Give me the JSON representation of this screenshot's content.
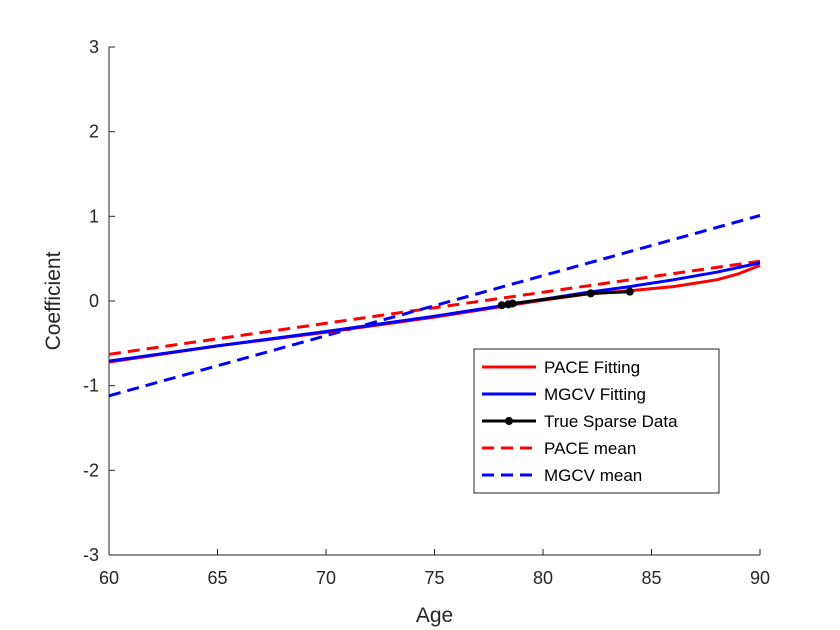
{
  "chart_data": {
    "type": "line",
    "title": "",
    "xlabel": "Age",
    "ylabel": "Coefficient",
    "xlim": [
      60,
      90
    ],
    "ylim": [
      -3,
      3
    ],
    "xticks": [
      60,
      65,
      70,
      75,
      80,
      85,
      90
    ],
    "yticks": [
      -3,
      -2,
      -1,
      0,
      1,
      2,
      3
    ],
    "grid": false,
    "legend_position": "lower-right",
    "series": [
      {
        "name": "PACE Fitting",
        "color": "#ff0000",
        "style": "solid",
        "x": [
          60,
          65,
          70,
          75,
          78,
          80,
          82,
          84,
          86,
          88,
          89,
          90
        ],
        "y": [
          -0.72,
          -0.53,
          -0.37,
          -0.19,
          -0.07,
          0.01,
          0.08,
          0.12,
          0.17,
          0.25,
          0.32,
          0.42
        ]
      },
      {
        "name": "MGCV Fitting",
        "color": "#0000ff",
        "style": "solid",
        "x": [
          60,
          65,
          70,
          75,
          78,
          80,
          82,
          84,
          86,
          88,
          90
        ],
        "y": [
          -0.71,
          -0.53,
          -0.36,
          -0.18,
          -0.06,
          0.02,
          0.1,
          0.17,
          0.25,
          0.34,
          0.45
        ]
      },
      {
        "name": "True Sparse Data",
        "color": "#000000",
        "style": "solid-marker",
        "x": [
          78.1,
          78.4,
          78.6,
          82.2,
          84.0
        ],
        "y": [
          -0.05,
          -0.04,
          -0.03,
          0.09,
          0.11
        ]
      },
      {
        "name": "PACE mean",
        "color": "#ff0000",
        "style": "dashed",
        "x": [
          60,
          90
        ],
        "y": [
          -0.63,
          0.47
        ]
      },
      {
        "name": "MGCV mean",
        "color": "#0000ff",
        "style": "dashed",
        "x": [
          60,
          90
        ],
        "y": [
          -1.12,
          1.01
        ]
      }
    ]
  }
}
